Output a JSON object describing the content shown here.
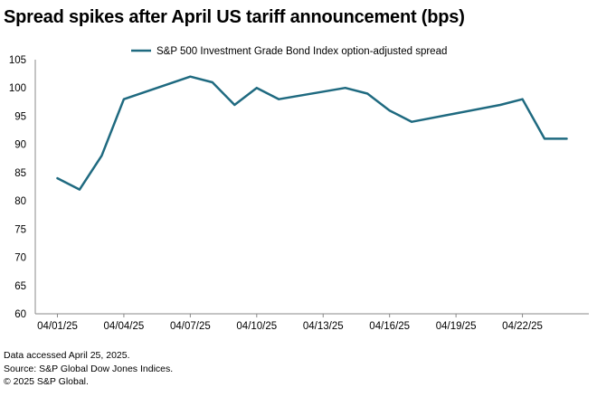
{
  "chart_data": {
    "type": "line",
    "title": "Spread spikes after April US tariff announcement (bps)",
    "xlabel": "",
    "ylabel": "",
    "x_tick_labels": [
      "04/01/25",
      "04/04/25",
      "04/07/25",
      "04/10/25",
      "04/13/25",
      "04/16/25",
      "04/19/25",
      "04/22/25"
    ],
    "y_ticks": [
      60,
      65,
      70,
      75,
      80,
      85,
      90,
      95,
      100,
      105
    ],
    "ylim": [
      60,
      105
    ],
    "xlim": [
      "03/31/25",
      "04/25/25"
    ],
    "grid": false,
    "legend_position": "top",
    "series": [
      {
        "name": "S&P 500 Investment Grade Bond Index option-adjusted spread",
        "color": "#1f6a80",
        "x": [
          "04/01/25",
          "04/02/25",
          "04/03/25",
          "04/04/25",
          "04/07/25",
          "04/08/25",
          "04/09/25",
          "04/10/25",
          "04/11/25",
          "04/14/25",
          "04/15/25",
          "04/16/25",
          "04/17/25",
          "04/21/25",
          "04/22/25",
          "04/23/25",
          "04/24/25"
        ],
        "values": [
          84,
          82,
          88,
          98,
          102,
          101,
          97,
          100,
          98,
          100,
          99,
          96,
          94,
          97,
          98,
          91,
          91
        ]
      }
    ]
  },
  "footer": {
    "line1": "Data accessed April 25, 2025.",
    "line2": "Source: S&P Global Dow Jones Indices.",
    "line3": "© 2025 S&P Global."
  }
}
